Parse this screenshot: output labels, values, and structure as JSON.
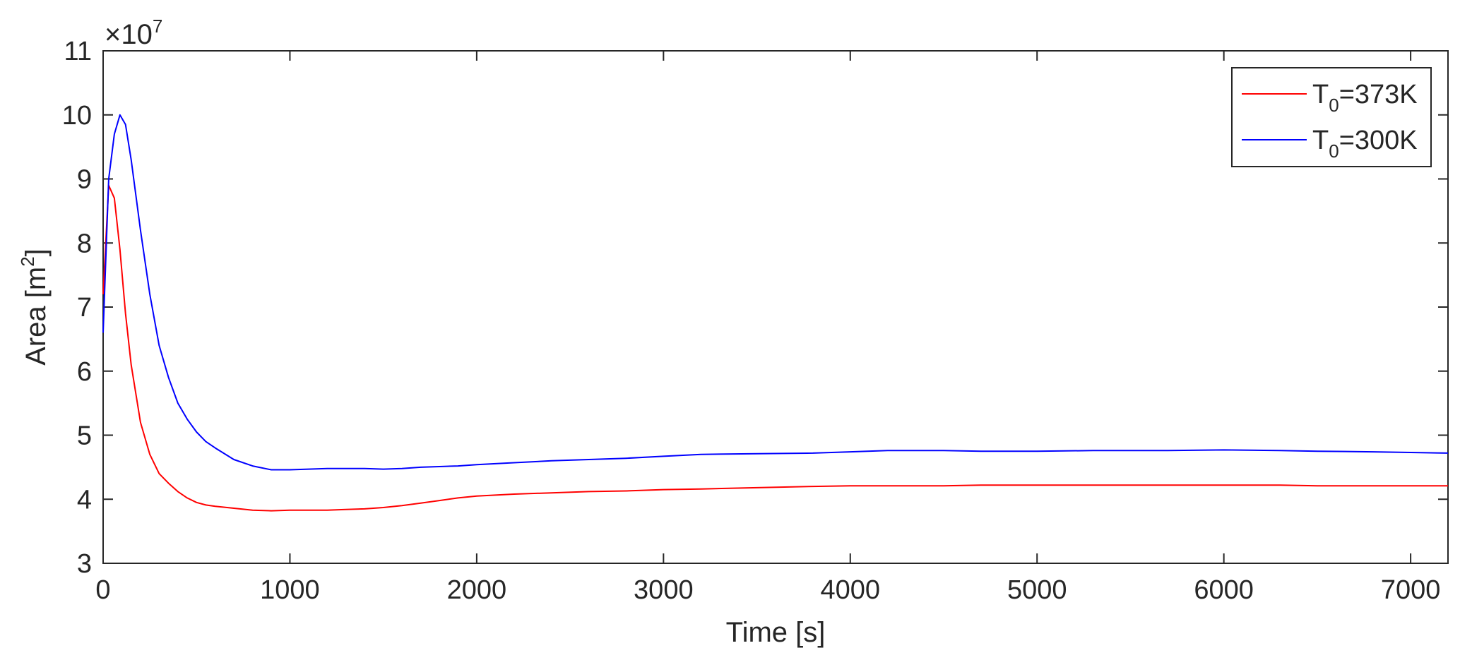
{
  "chart_data": {
    "type": "line",
    "xlabel": "Time [s]",
    "ylabel": "Area [m",
    "ylabel_sup": "2",
    "ylabel_close": "]",
    "y_exponent_base": "×10",
    "y_exponent": "7",
    "xlim": [
      0,
      7200
    ],
    "ylim": [
      3,
      11
    ],
    "x_ticks": [
      0,
      1000,
      2000,
      3000,
      4000,
      5000,
      6000,
      7000
    ],
    "x_tick_labels": [
      "0",
      "1000",
      "2000",
      "3000",
      "4000",
      "5000",
      "6000",
      "7000"
    ],
    "y_ticks": [
      3,
      4,
      5,
      6,
      7,
      8,
      9,
      10,
      11
    ],
    "y_tick_labels": [
      "3",
      "4",
      "5",
      "6",
      "7",
      "8",
      "9",
      "10",
      "11"
    ],
    "grid": false,
    "legend_position": "top-right",
    "series": [
      {
        "name_main": "T",
        "name_sub": "0",
        "name_rest": "=373K",
        "color": "#ff0000",
        "x": [
          0,
          30,
          60,
          90,
          120,
          150,
          200,
          250,
          300,
          350,
          400,
          450,
          500,
          550,
          600,
          700,
          800,
          900,
          1000,
          1100,
          1200,
          1300,
          1400,
          1500,
          1600,
          1700,
          1800,
          1900,
          2000,
          2200,
          2400,
          2600,
          2800,
          3000,
          3200,
          3500,
          3800,
          4000,
          4200,
          4500,
          4700,
          5000,
          5300,
          5500,
          5700,
          6000,
          6300,
          6500,
          6800,
          7000,
          7200
        ],
        "y": [
          7.2,
          8.9,
          8.7,
          7.9,
          6.9,
          6.1,
          5.2,
          4.7,
          4.4,
          4.25,
          4.12,
          4.02,
          3.95,
          3.91,
          3.89,
          3.86,
          3.83,
          3.82,
          3.83,
          3.83,
          3.83,
          3.84,
          3.85,
          3.87,
          3.9,
          3.94,
          3.98,
          4.02,
          4.05,
          4.08,
          4.1,
          4.12,
          4.13,
          4.15,
          4.16,
          4.18,
          4.2,
          4.21,
          4.21,
          4.21,
          4.22,
          4.22,
          4.22,
          4.22,
          4.22,
          4.22,
          4.22,
          4.21,
          4.21,
          4.21,
          4.21
        ]
      },
      {
        "name_main": "T",
        "name_sub": "0",
        "name_rest": "=300K",
        "color": "#0000ff",
        "x": [
          0,
          30,
          60,
          90,
          120,
          150,
          200,
          250,
          300,
          350,
          400,
          450,
          500,
          550,
          600,
          700,
          800,
          900,
          1000,
          1100,
          1200,
          1300,
          1400,
          1500,
          1600,
          1700,
          1800,
          1900,
          2000,
          2200,
          2400,
          2600,
          2800,
          3000,
          3200,
          3500,
          3800,
          4000,
          4200,
          4500,
          4700,
          5000,
          5300,
          5500,
          5700,
          6000,
          6300,
          6500,
          6800,
          7000,
          7200
        ],
        "y": [
          6.6,
          9.0,
          9.7,
          10.0,
          9.85,
          9.3,
          8.2,
          7.2,
          6.4,
          5.9,
          5.5,
          5.25,
          5.05,
          4.9,
          4.8,
          4.62,
          4.52,
          4.46,
          4.46,
          4.47,
          4.48,
          4.48,
          4.48,
          4.47,
          4.48,
          4.5,
          4.51,
          4.52,
          4.54,
          4.57,
          4.6,
          4.62,
          4.64,
          4.67,
          4.7,
          4.71,
          4.72,
          4.74,
          4.76,
          4.76,
          4.75,
          4.75,
          4.76,
          4.76,
          4.76,
          4.77,
          4.76,
          4.75,
          4.74,
          4.73,
          4.72
        ]
      }
    ]
  }
}
